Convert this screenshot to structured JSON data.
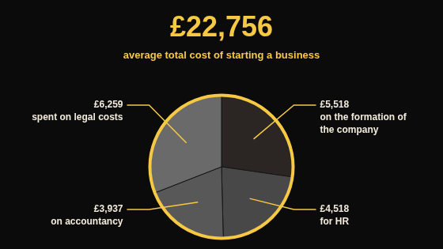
{
  "chart_data": {
    "type": "pie",
    "title": "£22,756",
    "subtitle": "average total cost of starting a business",
    "categories": [
      "on the formation of the company",
      "for HR",
      "on accountancy",
      "spent on legal costs"
    ],
    "values": [
      5518,
      4518,
      3937,
      6259
    ],
    "value_labels": [
      "£5,518",
      "£4,518",
      "£3,937",
      "£6,259"
    ],
    "colors": [
      "#2b2624",
      "#484848",
      "#585858",
      "#6a6a6a"
    ],
    "data_labels": true
  }
}
